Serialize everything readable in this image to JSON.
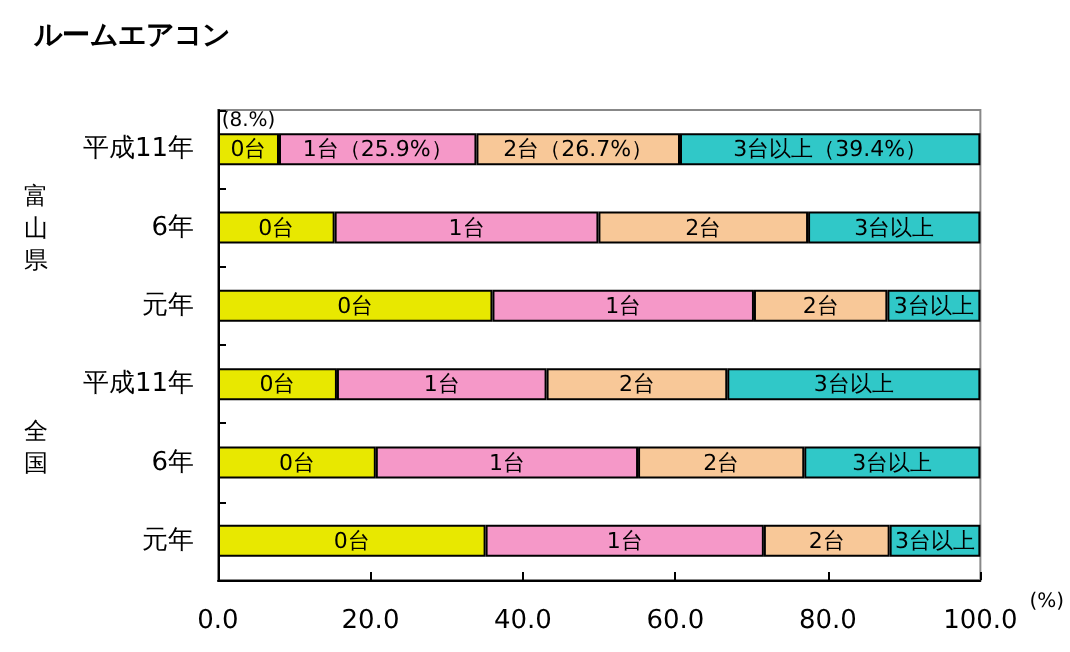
{
  "chart_data": {
    "type": "bar",
    "orientation": "horizontal",
    "stacked": true,
    "title": "ルームエアコン",
    "xlabel": "(%)",
    "categories": [
      "平成11年",
      "6年",
      "元年",
      "平成11年",
      "6年",
      "元年"
    ],
    "annotations": [
      "富山県",
      "全国"
    ],
    "series": [
      {
        "name": "0台",
        "color": "#e8e800",
        "values": [
          8.0,
          15.3,
          36.0,
          15.6,
          20.7,
          35.1
        ],
        "value_labels": [
          "(8.%)",
          null,
          null,
          null,
          null,
          null
        ]
      },
      {
        "name": "1台",
        "color": "#f598c8",
        "values": [
          25.9,
          34.6,
          34.3,
          27.5,
          34.4,
          36.5
        ],
        "value_labels": [
          "（25.9%）",
          null,
          null,
          null,
          null,
          null
        ]
      },
      {
        "name": "2台",
        "color": "#f8c898",
        "values": [
          26.7,
          27.5,
          17.5,
          23.7,
          21.8,
          16.5
        ],
        "value_labels": [
          "（26.7%）",
          null,
          null,
          null,
          null,
          null
        ]
      },
      {
        "name": "3台以上",
        "color": "#30c8c8",
        "values": [
          39.4,
          22.6,
          12.2,
          33.2,
          23.1,
          11.9
        ],
        "value_labels": [
          "（39.4%）",
          null,
          null,
          null,
          null,
          null
        ]
      }
    ],
    "xlim": [
      0,
      100
    ],
    "xticks": [
      {
        "value": 0,
        "label": "0.0"
      },
      {
        "value": 20,
        "label": "20.0"
      },
      {
        "value": 40,
        "label": "40.0"
      },
      {
        "value": 60,
        "label": "60.0"
      },
      {
        "value": 80,
        "label": "80.0"
      },
      {
        "value": 100,
        "label": "100.0"
      }
    ],
    "grid": false,
    "legend": false
  }
}
